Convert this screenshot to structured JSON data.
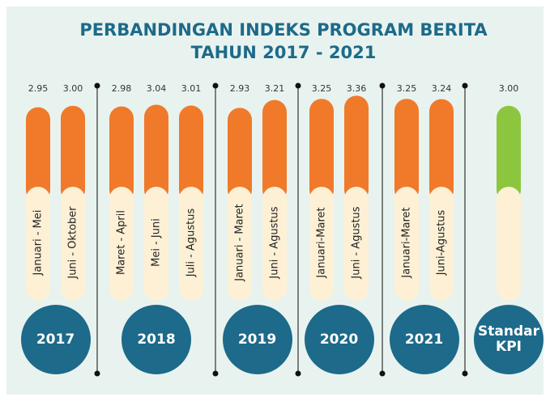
{
  "chart_data": {
    "type": "bar",
    "title": "PERBANDINGAN INDEKS PROGRAM BERITA",
    "subtitle": "TAHUN 2017 - 2021",
    "groups": [
      {
        "name": "2017",
        "color": "#f07a2a",
        "categories": [
          "Januari - Mei",
          "Juni - Oktober"
        ],
        "values": [
          2.95,
          3.0
        ],
        "value_labels": [
          "2.95",
          "3.00"
        ]
      },
      {
        "name": "2018",
        "color": "#f07a2a",
        "categories": [
          "Maret - April",
          "Mei - Juni",
          "Juli - Agustus"
        ],
        "values": [
          2.98,
          3.04,
          3.01
        ],
        "value_labels": [
          "2.98",
          "3.04",
          "3.01"
        ]
      },
      {
        "name": "2019",
        "color": "#f07a2a",
        "categories": [
          "Januari - Maret",
          "Juni - Agustus"
        ],
        "values": [
          2.93,
          3.21
        ],
        "value_labels": [
          "2.93",
          "3.21"
        ]
      },
      {
        "name": "2020",
        "color": "#f07a2a",
        "categories": [
          "Januari-Maret",
          "Juni - Agustus"
        ],
        "values": [
          3.25,
          3.36
        ],
        "value_labels": [
          "3.25",
          "3.36"
        ]
      },
      {
        "name": "2021",
        "color": "#f07a2a",
        "categories": [
          "Januari-Maret",
          "Juni-Agustus"
        ],
        "values": [
          3.25,
          3.24
        ],
        "value_labels": [
          "3.25",
          "3.24"
        ]
      },
      {
        "name": "Standar KPI",
        "color": "#8cc63f",
        "categories": [
          null
        ],
        "values": [
          3.0
        ],
        "value_labels": [
          "3.00"
        ]
      }
    ]
  }
}
